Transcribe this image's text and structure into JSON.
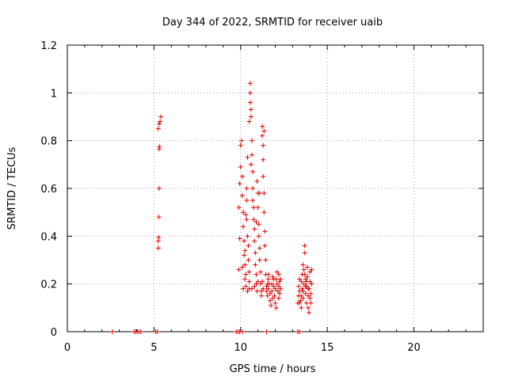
{
  "chart_data": {
    "type": "scatter",
    "title": "Day 344 of 2022, SRMTID for receiver uaib",
    "xlabel": "GPS time / hours",
    "ylabel": "SRMTID / TECUs",
    "xlim": [
      0,
      24
    ],
    "ylim": [
      0,
      1.2
    ],
    "xticks": [
      0,
      5,
      10,
      15,
      20
    ],
    "xtick_labels": [
      "0",
      "5",
      "10",
      "15",
      "20"
    ],
    "yticks": [
      0,
      0.2,
      0.4,
      0.6,
      0.8,
      1.0,
      1.2
    ],
    "ytick_labels": [
      "0",
      "0.2",
      "0.4",
      "0.6",
      "0.8",
      "1",
      "1.2"
    ],
    "grid": true,
    "marker": "+",
    "color": "#e00000",
    "series": [
      {
        "name": "SRMTID",
        "points": [
          [
            2.6,
            0
          ],
          [
            3.85,
            0
          ],
          [
            3.95,
            0
          ],
          [
            4.05,
            0
          ],
          [
            4.15,
            0
          ],
          [
            4.25,
            0
          ],
          [
            5.1,
            0
          ],
          [
            5.2,
            0
          ],
          [
            9.75,
            0
          ],
          [
            9.85,
            0
          ],
          [
            9.95,
            0
          ],
          [
            10.1,
            0
          ],
          [
            11.5,
            0
          ],
          [
            13.3,
            0
          ],
          [
            13.4,
            0
          ],
          [
            5.25,
            0.35
          ],
          [
            5.25,
            0.38
          ],
          [
            5.27,
            0.395
          ],
          [
            5.28,
            0.48
          ],
          [
            5.3,
            0.6
          ],
          [
            5.3,
            0.765
          ],
          [
            5.32,
            0.775
          ],
          [
            5.25,
            0.85
          ],
          [
            5.3,
            0.87
          ],
          [
            5.35,
            0.88
          ],
          [
            5.4,
            0.9
          ],
          [
            9.9,
            0.26
          ],
          [
            9.95,
            0.39
          ],
          [
            9.9,
            0.52
          ],
          [
            9.95,
            0.62
          ],
          [
            10.0,
            0.69
          ],
          [
            10.0,
            0.78
          ],
          [
            10.05,
            0.8
          ],
          [
            10.1,
            0.65
          ],
          [
            10.1,
            0.57
          ],
          [
            10.15,
            0.5
          ],
          [
            10.15,
            0.44
          ],
          [
            10.2,
            0.38
          ],
          [
            10.2,
            0.32
          ],
          [
            10.25,
            0.28
          ],
          [
            10.25,
            0.22
          ],
          [
            10.3,
            0.19
          ],
          [
            10.3,
            0.49
          ],
          [
            10.35,
            0.55
          ],
          [
            10.35,
            0.6
          ],
          [
            10.4,
            0.73
          ],
          [
            10.4,
            0.4
          ],
          [
            10.45,
            0.36
          ],
          [
            10.45,
            0.3
          ],
          [
            10.5,
            0.25
          ],
          [
            10.5,
            0.18
          ],
          [
            10.5,
            0.88
          ],
          [
            10.55,
            0.96
          ],
          [
            10.55,
            1.0
          ],
          [
            10.55,
            1.04
          ],
          [
            10.6,
            0.93
          ],
          [
            10.6,
            0.9
          ],
          [
            10.65,
            0.8
          ],
          [
            10.65,
            0.74
          ],
          [
            10.7,
            0.67
          ],
          [
            10.7,
            0.6
          ],
          [
            10.75,
            0.52
          ],
          [
            10.75,
            0.47
          ],
          [
            10.8,
            0.43
          ],
          [
            10.8,
            0.38
          ],
          [
            10.85,
            0.33
          ],
          [
            10.85,
            0.28
          ],
          [
            10.9,
            0.24
          ],
          [
            10.9,
            0.2
          ],
          [
            10.95,
            0.17
          ],
          [
            10.95,
            0.63
          ],
          [
            11.0,
            0.58
          ],
          [
            11.0,
            0.52
          ],
          [
            11.05,
            0.45
          ],
          [
            11.05,
            0.4
          ],
          [
            11.1,
            0.35
          ],
          [
            11.1,
            0.3
          ],
          [
            11.15,
            0.25
          ],
          [
            11.15,
            0.2
          ],
          [
            11.2,
            0.17
          ],
          [
            11.2,
            0.15
          ],
          [
            11.25,
            0.86
          ],
          [
            11.25,
            0.82
          ],
          [
            11.3,
            0.78
          ],
          [
            11.3,
            0.72
          ],
          [
            11.3,
            0.65
          ],
          [
            11.35,
            0.58
          ],
          [
            11.35,
            0.84
          ],
          [
            11.4,
            0.42
          ],
          [
            11.4,
            0.36
          ],
          [
            11.45,
            0.3
          ],
          [
            11.45,
            0.24
          ],
          [
            11.5,
            0.19
          ],
          [
            11.5,
            0.17
          ],
          [
            11.55,
            0.15
          ],
          [
            11.6,
            0.18
          ],
          [
            11.6,
            0.22
          ],
          [
            11.65,
            0.2
          ],
          [
            11.7,
            0.16
          ],
          [
            11.7,
            0.13
          ],
          [
            11.75,
            0.11
          ],
          [
            11.8,
            0.17
          ],
          [
            11.8,
            0.2
          ],
          [
            11.85,
            0.23
          ],
          [
            11.9,
            0.19
          ],
          [
            11.95,
            0.15
          ],
          [
            12.0,
            0.12
          ],
          [
            12.0,
            0.18
          ],
          [
            12.05,
            0.22
          ],
          [
            12.1,
            0.25
          ],
          [
            12.1,
            0.2
          ],
          [
            12.15,
            0.17
          ],
          [
            12.2,
            0.14
          ],
          [
            12.2,
            0.19
          ],
          [
            12.25,
            0.21
          ],
          [
            12.25,
            0.16
          ],
          [
            12.3,
            0.18
          ],
          [
            12.3,
            0.22
          ],
          [
            10.35,
            0.47
          ],
          [
            10.25,
            0.34
          ],
          [
            10.6,
            0.7
          ],
          [
            10.7,
            0.55
          ],
          [
            10.9,
            0.46
          ],
          [
            11.1,
            0.58
          ],
          [
            11.35,
            0.5
          ],
          [
            10.1,
            0.27
          ],
          [
            10.3,
            0.24
          ],
          [
            10.5,
            0.21
          ],
          [
            10.8,
            0.19
          ],
          [
            11.0,
            0.21
          ],
          [
            11.3,
            0.18
          ],
          [
            11.6,
            0.24
          ],
          [
            11.9,
            0.22
          ],
          [
            12.2,
            0.24
          ],
          [
            10.15,
            0.18
          ],
          [
            10.4,
            0.17
          ],
          [
            10.65,
            0.18
          ],
          [
            11.25,
            0.21
          ],
          [
            11.55,
            0.2
          ],
          [
            11.85,
            0.14
          ],
          [
            12.05,
            0.1
          ],
          [
            13.3,
            0.12
          ],
          [
            13.35,
            0.15
          ],
          [
            13.35,
            0.19
          ],
          [
            13.4,
            0.22
          ],
          [
            13.4,
            0.17
          ],
          [
            13.45,
            0.13
          ],
          [
            13.5,
            0.1
          ],
          [
            13.5,
            0.21
          ],
          [
            13.55,
            0.24
          ],
          [
            13.55,
            0.18
          ],
          [
            13.6,
            0.14
          ],
          [
            13.6,
            0.28
          ],
          [
            13.65,
            0.26
          ],
          [
            13.65,
            0.2
          ],
          [
            13.7,
            0.33
          ],
          [
            13.7,
            0.36
          ],
          [
            13.75,
            0.22
          ],
          [
            13.75,
            0.16
          ],
          [
            13.8,
            0.12
          ],
          [
            13.8,
            0.19
          ],
          [
            13.85,
            0.23
          ],
          [
            13.85,
            0.27
          ],
          [
            13.9,
            0.15
          ],
          [
            13.9,
            0.1
          ],
          [
            13.95,
            0.08
          ],
          [
            13.95,
            0.18
          ],
          [
            14.0,
            0.21
          ],
          [
            14.0,
            0.25
          ],
          [
            14.05,
            0.16
          ],
          [
            14.05,
            0.12
          ],
          [
            14.1,
            0.2
          ],
          [
            14.1,
            0.26
          ],
          [
            13.7,
            0.24
          ],
          [
            13.8,
            0.21
          ],
          [
            13.9,
            0.18
          ],
          [
            14.0,
            0.14
          ],
          [
            13.6,
            0.17
          ],
          [
            13.5,
            0.15
          ],
          [
            13.4,
            0.12
          ],
          [
            13.75,
            0.19
          ]
        ]
      }
    ]
  }
}
